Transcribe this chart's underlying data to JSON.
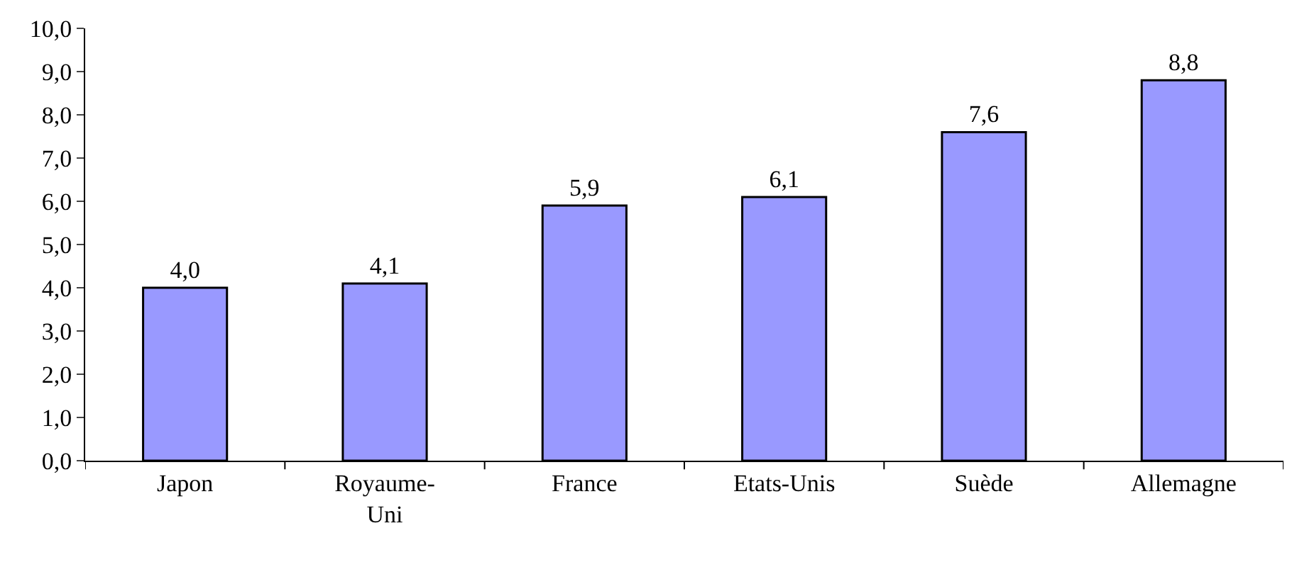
{
  "chart_data": {
    "type": "bar",
    "categories": [
      "Japon",
      "Royaume-\nUni",
      "France",
      "Etats-Unis",
      "Suède",
      "Allemagne"
    ],
    "values": [
      4.0,
      4.1,
      5.9,
      6.1,
      7.6,
      8.8
    ],
    "value_labels": [
      "4,0",
      "4,1",
      "5,9",
      "6,1",
      "7,6",
      "8,8"
    ],
    "color": "#9999ff",
    "ylim": [
      0,
      10
    ],
    "yticks": [
      {
        "value": 0,
        "label": "0,0"
      },
      {
        "value": 1,
        "label": "1,0"
      },
      {
        "value": 2,
        "label": "2,0"
      },
      {
        "value": 3,
        "label": "3,0"
      },
      {
        "value": 4,
        "label": "4,0"
      },
      {
        "value": 5,
        "label": "5,0"
      },
      {
        "value": 6,
        "label": "6,0"
      },
      {
        "value": 7,
        "label": "7,0"
      },
      {
        "value": 8,
        "label": "8,0"
      },
      {
        "value": 9,
        "label": "9,0"
      },
      {
        "value": 10,
        "label": "10,0"
      }
    ],
    "grid": false
  }
}
